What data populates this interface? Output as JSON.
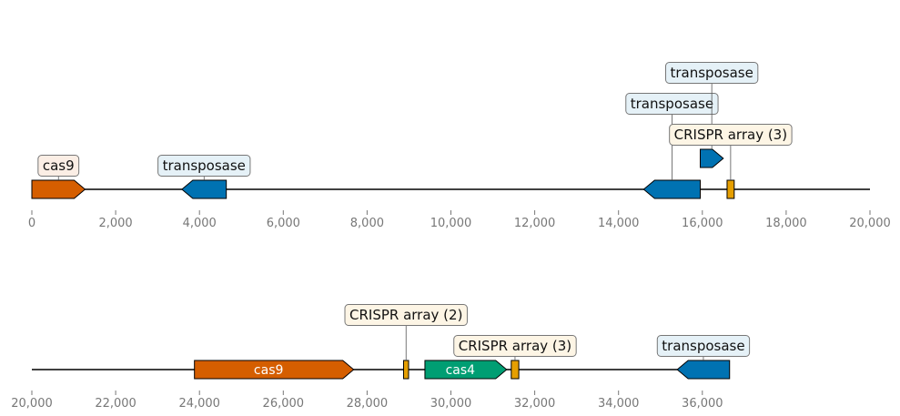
{
  "chart_data": [
    {
      "type": "gene_map",
      "xlim": [
        0,
        20000
      ],
      "ticks": [
        "0",
        "2,000",
        "4,000",
        "6,000",
        "8,000",
        "10,000",
        "12,000",
        "14,000",
        "16,000",
        "18,000",
        "20,000"
      ],
      "features": [
        {
          "label": "cas9",
          "start": 0,
          "end": 1270,
          "strand": 1,
          "level": 0,
          "category": "cas9",
          "label_mode": "box",
          "label_level": 1
        },
        {
          "label": "transposase",
          "start": 3580,
          "end": 4640,
          "strand": -1,
          "level": 0,
          "category": "transposase",
          "label_mode": "box",
          "label_level": 1
        },
        {
          "label": "transposase",
          "start": 14600,
          "end": 15950,
          "strand": -1,
          "level": 0,
          "category": "transposase",
          "label_mode": "box",
          "label_level": 3
        },
        {
          "label": "",
          "start": 15950,
          "end": 16500,
          "strand": 1,
          "level": 1,
          "category": "transposase",
          "label_mode": "none"
        },
        {
          "label": "transposase",
          "start": 15950,
          "end": 16500,
          "strand": 1,
          "level": 1,
          "category": "transposase",
          "label_mode": "box",
          "label_level": 4,
          "hide_shape": true
        },
        {
          "label": "CRISPR array (3)",
          "start": 16590,
          "end": 16760,
          "strand": 0,
          "level": 0,
          "category": "crispr",
          "label_mode": "box",
          "label_level": 2
        }
      ]
    },
    {
      "type": "gene_map",
      "xlim": [
        20000,
        40000
      ],
      "ticks": [
        "20,000",
        "22,000",
        "24,000",
        "26,000",
        "28,000",
        "30,000",
        "32,000",
        "34,000",
        "36,000"
      ],
      "features": [
        {
          "label": "cas9",
          "start": 23880,
          "end": 27680,
          "strand": 1,
          "level": 0,
          "category": "cas9",
          "label_mode": "inline"
        },
        {
          "label": "CRISPR array (2)",
          "start": 28870,
          "end": 28990,
          "strand": 0,
          "level": 0,
          "category": "crispr",
          "label_mode": "box",
          "label_level": 2
        },
        {
          "label": "cas4",
          "start": 29380,
          "end": 31330,
          "strand": 1,
          "level": 0,
          "category": "cas4",
          "label_mode": "inline"
        },
        {
          "label": "CRISPR array (3)",
          "start": 31440,
          "end": 31620,
          "strand": 0,
          "level": 0,
          "category": "crispr",
          "label_mode": "box",
          "label_level": 1
        },
        {
          "label": "transposase",
          "start": 35400,
          "end": 36650,
          "strand": -1,
          "level": 0,
          "category": "transposase",
          "label_mode": "box",
          "label_level": 1
        }
      ]
    }
  ],
  "colors": {
    "cas9": {
      "fill": "#d55e00",
      "label_bg": "#fbeee5"
    },
    "transposase": {
      "fill": "#0072b2",
      "label_bg": "#e5f1f7"
    },
    "crispr": {
      "fill": "#e69f00",
      "label_bg": "#fdf5e5"
    },
    "cas4": {
      "fill": "#009e73",
      "label_bg": "#e5f5f1"
    },
    "axis": "#000000",
    "ticks": "#777777",
    "label_border": "#777777"
  }
}
